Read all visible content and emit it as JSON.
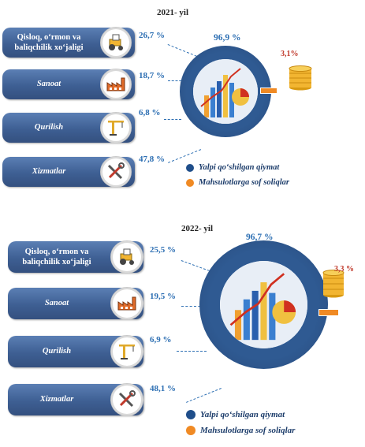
{
  "colors": {
    "sector_box": "#3e5f93",
    "ring": "#2f5a92",
    "value_added": "#1f4e8a",
    "taxes": "#f08a24",
    "percent_text": "#2d6fb3",
    "tax_percent_text": "#c0392b"
  },
  "panels": [
    {
      "year_title": "2021- yil",
      "sectors": [
        {
          "name": "Qisloq, o‘rmon va baliqchilik xo‘jaligi",
          "value_label": "26,7 %",
          "icon": "tractor-icon"
        },
        {
          "name": "Sanoat",
          "value_label": "18,7 %",
          "icon": "factory-icon"
        },
        {
          "name": "Qurilish",
          "value_label": "6,8 %",
          "icon": "crane-icon"
        },
        {
          "name": "Xizmatlar",
          "value_label": "47,8 %",
          "icon": "tools-icon"
        }
      ],
      "ring": {
        "value_added_label": "96,9 %",
        "taxes_label": "3,1%"
      },
      "legend": [
        "Yalpi qo‘shilgan qiymat",
        "Mahsulotlarga sof soliqlar"
      ]
    },
    {
      "year_title": "2022- yil",
      "sectors": [
        {
          "name": "Qisloq, o‘rmon va baliqchilik xo‘jaligi",
          "value_label": "25,5 %",
          "icon": "tractor-icon"
        },
        {
          "name": "Sanoat",
          "value_label": "19,5 %",
          "icon": "factory-icon"
        },
        {
          "name": "Qurilish",
          "value_label": "6,9 %",
          "icon": "crane-icon"
        },
        {
          "name": "Xizmatlar",
          "value_label": "48,1 %",
          "icon": "tools-icon"
        }
      ],
      "ring": {
        "value_added_label": "96,7 %",
        "taxes_label": "3,3 %"
      },
      "legend": [
        "Yalpi qo‘shilgan qiymat",
        "Mahsulotlarga sof soliqlar"
      ]
    }
  ],
  "chart_data": [
    {
      "type": "bar",
      "title": "2021- yil",
      "categories": [
        "Qisloq, o‘rmon va baliqchilik xo‘jaligi",
        "Sanoat",
        "Qurilish",
        "Xizmatlar"
      ],
      "values": [
        26.7,
        18.7,
        6.8,
        47.8
      ],
      "unit": "%"
    },
    {
      "type": "pie",
      "title": "2021- yil",
      "categories": [
        "Yalpi qo‘shilgan qiymat",
        "Mahsulotlarga sof soliqlar"
      ],
      "values": [
        96.9,
        3.1
      ],
      "unit": "%",
      "legend": "right"
    },
    {
      "type": "bar",
      "title": "2022- yil",
      "categories": [
        "Qisloq, o‘rmon va baliqchilik xo‘jaligi",
        "Sanoat",
        "Qurilish",
        "Xizmatlar"
      ],
      "values": [
        25.5,
        19.5,
        6.9,
        48.1
      ],
      "unit": "%"
    },
    {
      "type": "pie",
      "title": "2022- yil",
      "categories": [
        "Yalpi qo‘shilgan qiymat",
        "Mahsulotlarga sof soliqlar"
      ],
      "values": [
        96.7,
        3.3
      ],
      "unit": "%",
      "legend": "right"
    }
  ]
}
